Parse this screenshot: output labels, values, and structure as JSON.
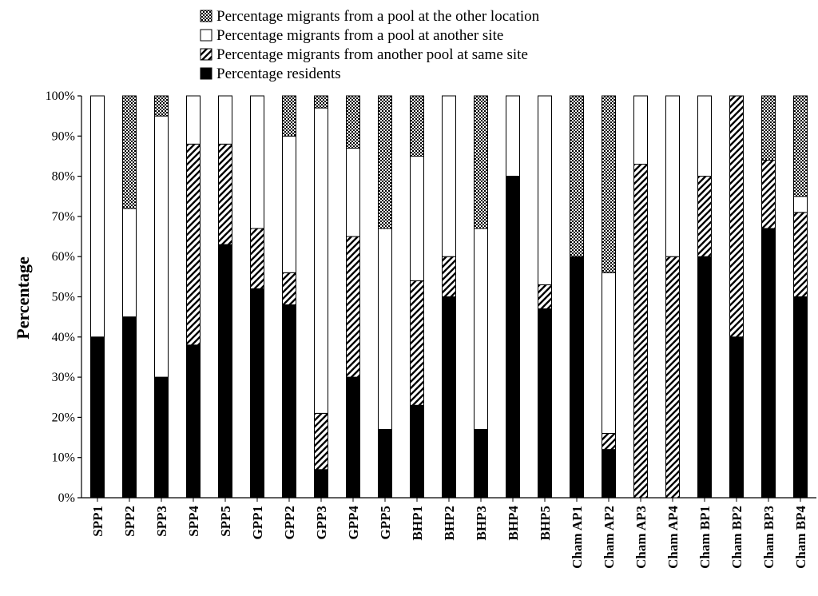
{
  "chart_data": {
    "type": "bar",
    "stacked": true,
    "ylabel": "Percentage",
    "xlabel": "",
    "ylim": [
      0,
      100
    ],
    "yticks": [
      "0%",
      "10%",
      "20%",
      "30%",
      "40%",
      "50%",
      "60%",
      "70%",
      "80%",
      "90%",
      "100%"
    ],
    "legend_position": "top",
    "grid": false,
    "categories": [
      "SPP1",
      "SPP2",
      "SPP3",
      "SPP4",
      "SPP5",
      "GPP1",
      "GPP2",
      "GPP3",
      "GPP4",
      "GPP5",
      "BHP1",
      "BHP2",
      "BHP3",
      "BHP4",
      "BHP5",
      "Cham AP1",
      "Cham AP2",
      "Cham AP3",
      "Cham AP4",
      "Cham BP1",
      "Cham BP2",
      "Cham BP3",
      "Cham BP4"
    ],
    "legend": [
      {
        "name": "Percentage migrants from a pool at the other location",
        "pattern": "checker"
      },
      {
        "name": "Percentage migrants from a pool at another site",
        "pattern": "white"
      },
      {
        "name": "Percentage migrants from another pool at same site",
        "pattern": "hatch"
      },
      {
        "name": "Percentage residents",
        "pattern": "black"
      }
    ],
    "series": [
      {
        "name": "Percentage residents",
        "pattern": "black",
        "values": [
          40,
          45,
          30,
          38,
          63,
          52,
          48,
          7,
          30,
          17,
          23,
          50,
          17,
          80,
          47,
          60,
          12,
          0,
          0,
          60,
          40,
          67,
          50
        ]
      },
      {
        "name": "Percentage migrants from another pool at same site",
        "pattern": "hatch",
        "values": [
          0,
          0,
          0,
          50,
          25,
          15,
          8,
          14,
          35,
          0,
          31,
          10,
          0,
          0,
          6,
          0,
          4,
          83,
          60,
          20,
          60,
          17,
          21
        ]
      },
      {
        "name": "Percentage migrants from a pool at another site",
        "pattern": "white",
        "values": [
          60,
          27,
          65,
          12,
          12,
          33,
          34,
          76,
          22,
          50,
          31,
          40,
          50,
          20,
          47,
          0,
          40,
          17,
          40,
          20,
          0,
          0,
          4
        ]
      },
      {
        "name": "Percentage migrants from a pool at the other location",
        "pattern": "checker",
        "values": [
          0,
          28,
          5,
          0,
          0,
          0,
          10,
          3,
          13,
          33,
          15,
          0,
          33,
          0,
          0,
          40,
          44,
          0,
          0,
          0,
          0,
          16,
          25
        ]
      }
    ]
  }
}
